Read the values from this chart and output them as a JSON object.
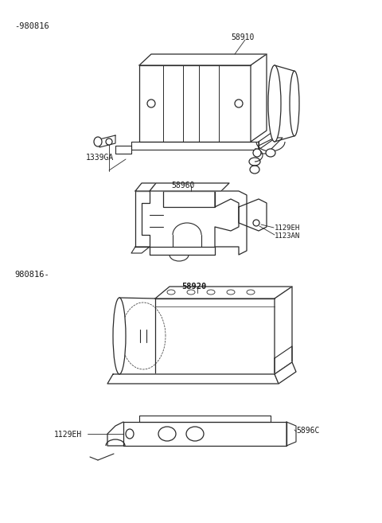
{
  "background_color": "#ffffff",
  "line_color": "#2a2a2a",
  "text_color": "#1a1a1a",
  "fig_width": 4.8,
  "fig_height": 6.57,
  "dpi": 100,
  "labels": {
    "top_date": "-980816",
    "bottom_date": "980816-",
    "part_58910": "58910",
    "part_1339GA": "1339GA",
    "part_58960": "58960",
    "part_1129EH_top": "1129EH",
    "part_1123AN": "1123AN",
    "part_58920": "58920",
    "part_5896C": "5896C",
    "part_1129EH_bot": "1129EH"
  }
}
